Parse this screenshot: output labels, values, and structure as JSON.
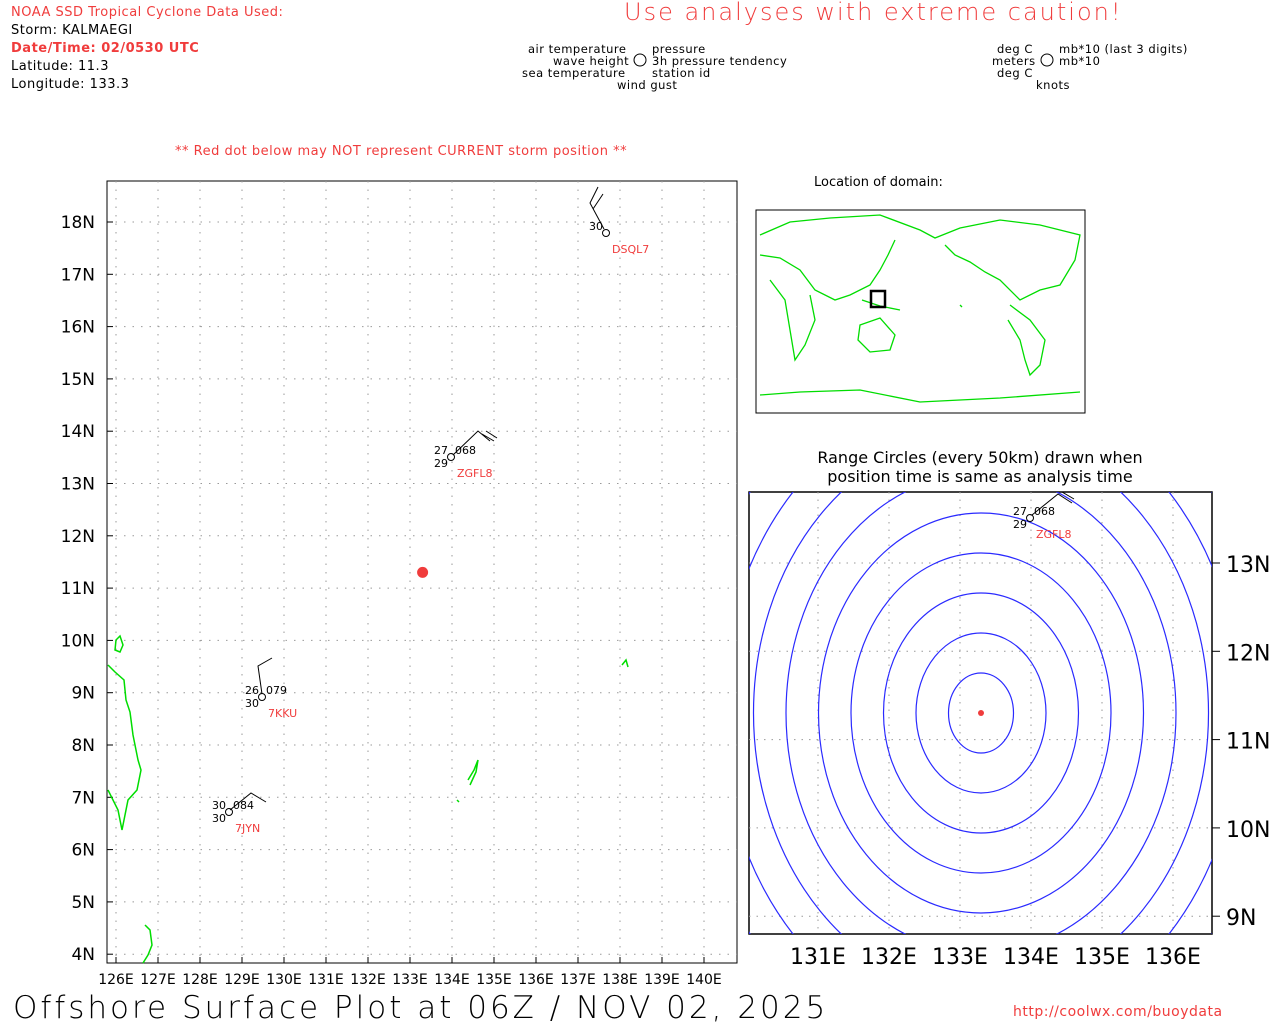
{
  "header": {
    "source_label": "NOAA SSD Tropical Cyclone Data Used:",
    "storm": "Storm: KALMAEGI",
    "datetime": "Date/Time: 02/0530 UTC",
    "latitude": "Latitude: 11.3",
    "longitude": "Longitude: 133.3",
    "caution": "Use analyses with extreme caution!",
    "red_dot_note": "** Red dot below may NOT represent CURRENT storm position **"
  },
  "legend": {
    "left": {
      "air_temp": "air temperature",
      "wave_height": "wave height",
      "sea_temp": "sea temperature",
      "pressure": "pressure",
      "tendency": "3h pressure tendency",
      "station_id": "station id",
      "wind_gust": "wind gust"
    },
    "right": {
      "air_temp": "deg C",
      "wave_height": "meters",
      "sea_temp": "deg C",
      "pressure": "mb*10 (last 3 digits)",
      "tendency": "mb*10",
      "wind_gust": "knots"
    }
  },
  "main_map": {
    "lat_labels": [
      "18N",
      "17N",
      "16N",
      "15N",
      "14N",
      "13N",
      "12N",
      "11N",
      "10N",
      "9N",
      "8N",
      "7N",
      "6N",
      "5N",
      "4N"
    ],
    "lon_labels": [
      "126E",
      "127E",
      "128E",
      "129E",
      "130E",
      "131E",
      "132E",
      "133E",
      "134E",
      "135E",
      "136E",
      "137E",
      "138E",
      "139E",
      "140E"
    ],
    "storm": {
      "lat": 11.3,
      "lon": 133.3,
      "color": "#f03c3c"
    },
    "stations": [
      {
        "id": "DSQL7",
        "air": "30",
        "sea": "",
        "pres": "",
        "lat": 18.2,
        "lon": 137.7
      },
      {
        "id": "ZGFL8",
        "air": "27",
        "sea": "29",
        "pres": "068",
        "lat": 13.5,
        "lon": 133.9
      },
      {
        "id": "7KKU",
        "air": "26",
        "sea": "30",
        "pres": "079",
        "lat": 8.9,
        "lon": 129.5
      },
      {
        "id": "7JYN",
        "air": "30",
        "sea": "30",
        "pres": "084",
        "lat": 6.7,
        "lon": 128.7
      }
    ]
  },
  "inset": {
    "title": "Location of domain:"
  },
  "range": {
    "title_line1": "Range Circles (every 50km) drawn when",
    "title_line2": "position time is same as analysis time",
    "lat_labels": [
      "13N",
      "12N",
      "11N",
      "10N",
      "9N"
    ],
    "lon_labels": [
      "131E",
      "132E",
      "133E",
      "134E",
      "135E",
      "136E"
    ],
    "circle_color": "#2a2aff"
  },
  "footer": {
    "title": "Offshore Surface Plot at 06Z / NOV 02, 2025",
    "url": "http://coolwx.com/buoydata"
  }
}
